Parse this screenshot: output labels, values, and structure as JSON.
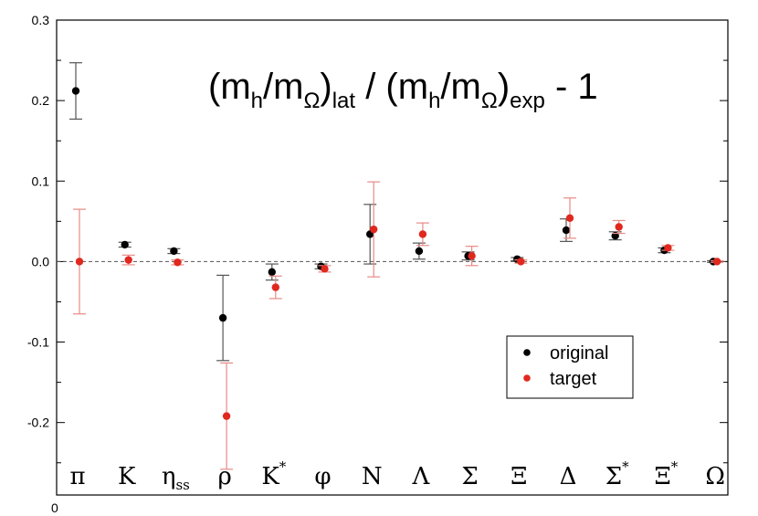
{
  "chart_data": {
    "type": "scatter",
    "title": {
      "parts": [
        {
          "text": "(m",
          "sub": false
        },
        {
          "text": "h",
          "sub": true
        },
        {
          "text": "/m",
          "sub": false
        },
        {
          "text": "Ω",
          "sub": true
        },
        {
          "text": ")",
          "sub": false
        },
        {
          "text": "lat",
          "sub": true
        },
        {
          "text": " / (m",
          "sub": false
        },
        {
          "text": "h",
          "sub": true
        },
        {
          "text": "/m",
          "sub": false
        },
        {
          "text": "Ω",
          "sub": true
        },
        {
          "text": ")",
          "sub": false
        },
        {
          "text": "exp",
          "sub": true
        },
        {
          "text": " - 1",
          "sub": false
        }
      ]
    },
    "categories": [
      {
        "label": "π",
        "sub": "",
        "sup": ""
      },
      {
        "label": "K",
        "sub": "",
        "sup": ""
      },
      {
        "label": "η",
        "sub": "ss",
        "sup": ""
      },
      {
        "label": "ρ",
        "sub": "",
        "sup": ""
      },
      {
        "label": "K",
        "sub": "",
        "sup": "*"
      },
      {
        "label": "φ",
        "sub": "",
        "sup": ""
      },
      {
        "label": "N",
        "sub": "",
        "sup": ""
      },
      {
        "label": "Λ",
        "sub": "",
        "sup": ""
      },
      {
        "label": "Σ",
        "sub": "",
        "sup": ""
      },
      {
        "label": "Ξ",
        "sub": "",
        "sup": ""
      },
      {
        "label": "Δ",
        "sub": "",
        "sup": ""
      },
      {
        "label": "Σ",
        "sub": "",
        "sup": "*"
      },
      {
        "label": "Ξ",
        "sub": "",
        "sup": "*"
      },
      {
        "label": "Ω",
        "sub": "",
        "sup": ""
      }
    ],
    "series": [
      {
        "name": "original",
        "color": "#000000",
        "values": [
          0.212,
          0.021,
          0.013,
          -0.07,
          -0.013,
          -0.006,
          0.034,
          0.013,
          0.007,
          0.003,
          0.039,
          0.032,
          0.014,
          0.0
        ],
        "errors": [
          0.035,
          0.003,
          0.003,
          0.053,
          0.01,
          0.003,
          0.037,
          0.01,
          0.005,
          0.002,
          0.014,
          0.005,
          0.003,
          0.001
        ]
      },
      {
        "name": "target",
        "color": "#e0281e",
        "values": [
          0.0,
          0.002,
          -0.001,
          -0.192,
          -0.032,
          -0.009,
          0.04,
          0.034,
          0.007,
          0.0,
          0.054,
          0.043,
          0.017,
          0.0
        ],
        "errors": [
          0.065,
          0.006,
          0.003,
          0.066,
          0.014,
          0.004,
          0.059,
          0.014,
          0.012,
          0.002,
          0.025,
          0.008,
          0.003,
          0.001
        ]
      }
    ],
    "ylim": [
      -0.29,
      0.3
    ],
    "yticks": [
      -0.2,
      -0.1,
      0.0,
      0.1,
      0.2,
      0.3
    ],
    "ytick_labels": [
      "-0.2",
      "-0.1",
      "0.0",
      "0.1",
      "0.2",
      "0.3"
    ],
    "xaxis_label": "0",
    "reference_line": 0.0,
    "grid": false,
    "legend_position": "lower-right"
  }
}
